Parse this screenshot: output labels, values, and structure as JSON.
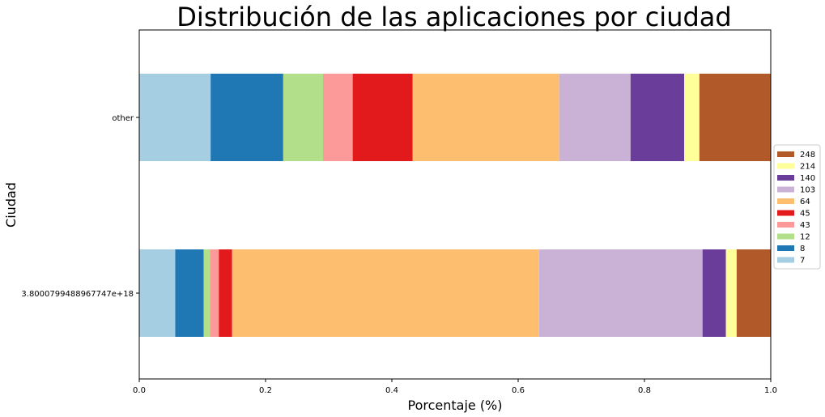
{
  "chart_data": {
    "type": "bar",
    "orientation": "horizontal",
    "stacked": true,
    "title": "Distribución de las aplicaciones por ciudad",
    "xlabel": "Porcentaje (%)",
    "ylabel": "Ciudad",
    "xlim": [
      0,
      1
    ],
    "xticks": [
      "0.0",
      "0.2",
      "0.4",
      "0.6",
      "0.8",
      "1.0"
    ],
    "categories": [
      "3.8000799488967747e+18",
      "other"
    ],
    "grid": false,
    "legend_position": "right",
    "series": [
      {
        "name": "7",
        "color": "#a6cee3",
        "values": [
          0.057,
          0.113
        ]
      },
      {
        "name": "8",
        "color": "#1f78b4",
        "values": [
          0.045,
          0.115
        ]
      },
      {
        "name": "12",
        "color": "#b2df8a",
        "values": [
          0.01,
          0.063
        ]
      },
      {
        "name": "43",
        "color": "#fb9a99",
        "values": [
          0.014,
          0.047
        ]
      },
      {
        "name": "45",
        "color": "#e31a1c",
        "values": [
          0.021,
          0.095
        ]
      },
      {
        "name": "64",
        "color": "#fdbf6f",
        "values": [
          0.486,
          0.232
        ]
      },
      {
        "name": "103",
        "color": "#cab2d6",
        "values": [
          0.259,
          0.113
        ]
      },
      {
        "name": "140",
        "color": "#6a3d9a",
        "values": [
          0.037,
          0.085
        ]
      },
      {
        "name": "214",
        "color": "#ffff99",
        "values": [
          0.017,
          0.024
        ]
      },
      {
        "name": "248",
        "color": "#b15928",
        "values": [
          0.054,
          0.113
        ]
      }
    ]
  }
}
